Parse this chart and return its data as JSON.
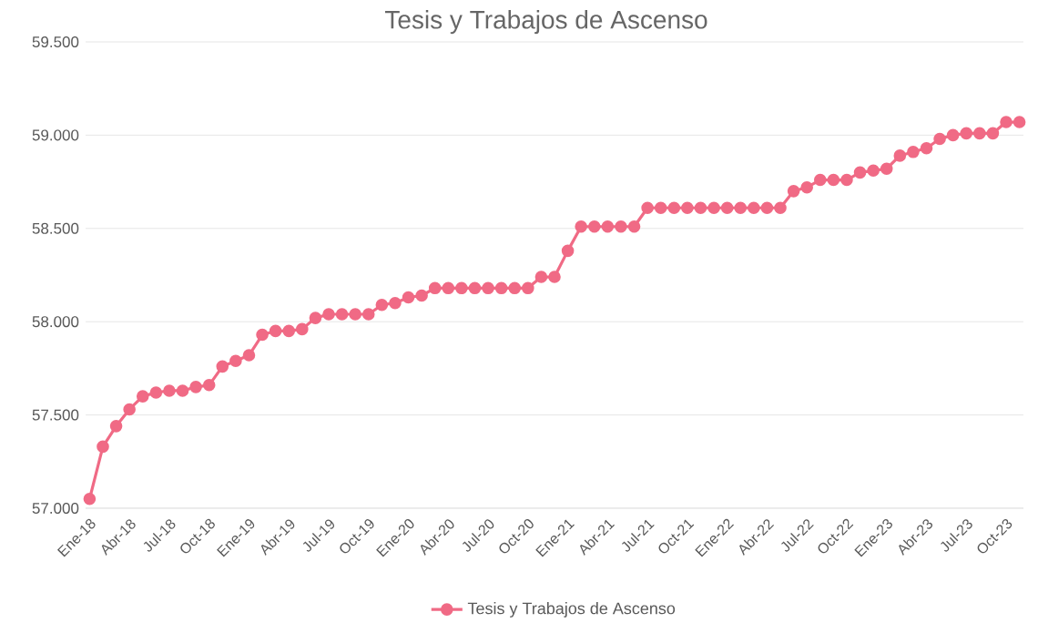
{
  "chart_data": {
    "type": "line",
    "title": "Tesis y Trabajos de Ascenso",
    "categories": [
      "Ene-18",
      null,
      null,
      "Abr-18",
      null,
      null,
      "Jul-18",
      null,
      null,
      "Oct-18",
      null,
      null,
      "Ene-19",
      null,
      null,
      "Abr-19",
      null,
      null,
      "Jul-19",
      null,
      null,
      "Oct-19",
      null,
      null,
      "Ene-20",
      null,
      null,
      "Abr-20",
      null,
      null,
      "Jul-20",
      null,
      null,
      "Oct-20",
      null,
      null,
      "Ene-21",
      null,
      null,
      "Abr-21",
      null,
      null,
      "Jul-21",
      null,
      null,
      "Oct-21",
      null,
      null,
      "Ene-22",
      null,
      null,
      "Abr-22",
      null,
      null,
      "Jul-22",
      null,
      null,
      "Oct-22",
      null,
      null,
      "Ene-23",
      null,
      null,
      "Abr-23",
      null,
      null,
      "Jul-23",
      null,
      null,
      "Oct-23",
      null
    ],
    "series": [
      {
        "name": "Tesis y Trabajos de Ascenso",
        "color": "#f06a85",
        "values": [
          57050,
          57330,
          57440,
          57530,
          57600,
          57620,
          57630,
          57630,
          57650,
          57660,
          57760,
          57790,
          57820,
          57930,
          57950,
          57950,
          57960,
          58020,
          58040,
          58040,
          58040,
          58040,
          58090,
          58100,
          58130,
          58140,
          58180,
          58180,
          58180,
          58180,
          58180,
          58180,
          58180,
          58180,
          58240,
          58240,
          58380,
          58510,
          58510,
          58510,
          58510,
          58510,
          58610,
          58610,
          58610,
          58610,
          58610,
          58610,
          58610,
          58610,
          58610,
          58610,
          58610,
          58700,
          58720,
          58760,
          58760,
          58760,
          58800,
          58810,
          58820,
          58890,
          58910,
          58930,
          58980,
          59000,
          59010,
          59010,
          59010,
          59070,
          59070
        ]
      }
    ],
    "ylim": [
      57000,
      59500
    ],
    "yticks": [
      {
        "value": 57000,
        "label": "57.000"
      },
      {
        "value": 57500,
        "label": "57.500"
      },
      {
        "value": 58000,
        "label": "58.000"
      },
      {
        "value": 58500,
        "label": "58.500"
      },
      {
        "value": 59000,
        "label": "59.000"
      },
      {
        "value": 59500,
        "label": "59.500"
      }
    ],
    "grid": "y",
    "legend": "bottom",
    "marker": "circle",
    "line_style": "solid"
  }
}
